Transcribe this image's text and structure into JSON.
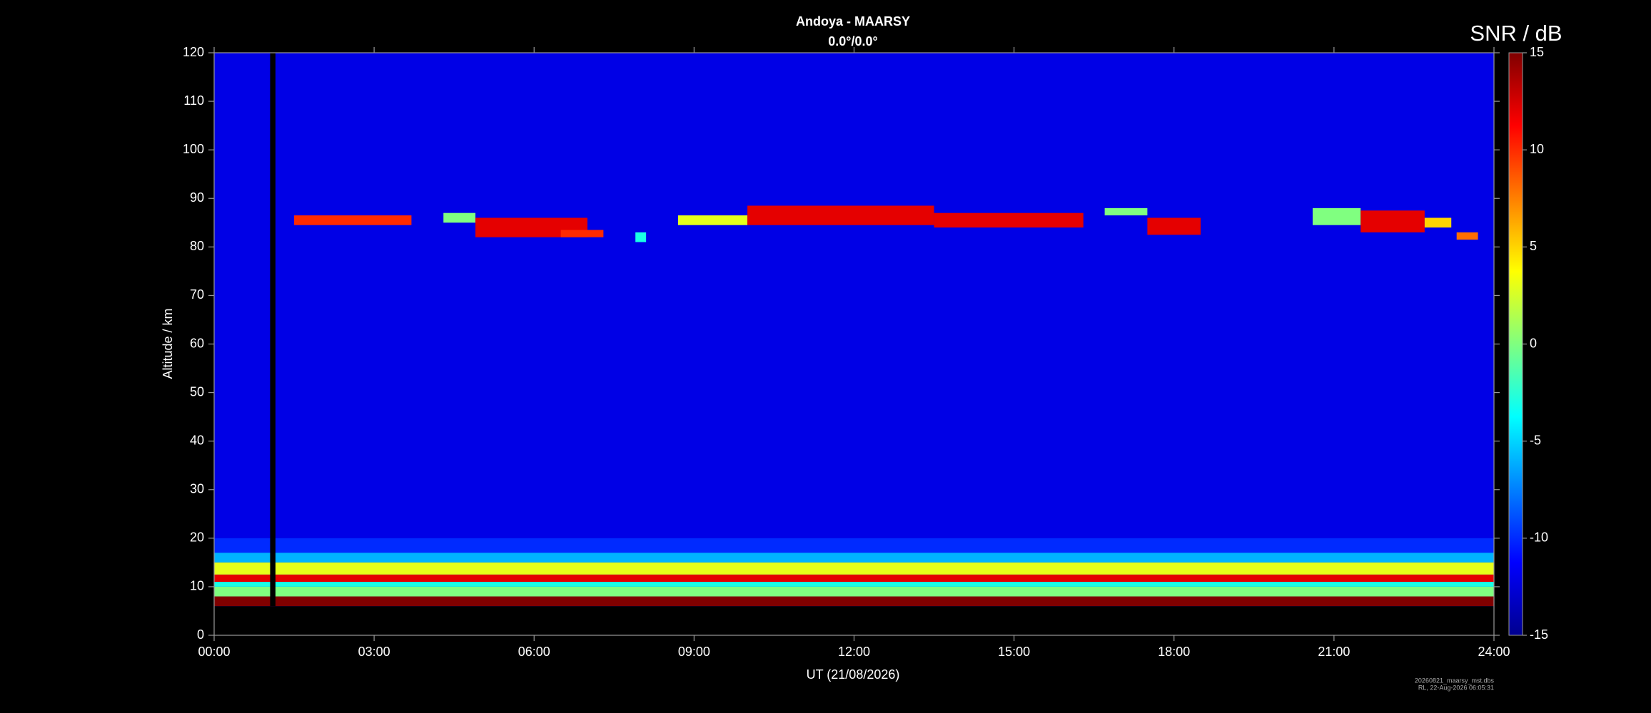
{
  "chart_data": {
    "type": "heatmap",
    "title": "Andoya - MAARSY",
    "subtitle": "0.0°/0.0°",
    "xlabel": "UT (21/08/2026)",
    "ylabel": "Altitude / km",
    "colorbar_label": "SNR / dB",
    "footnotes": [
      "20260821_maarsy_mst.dbs",
      "RL, 22-Aug-2026 06:05:31"
    ],
    "xlim": [
      0,
      24
    ],
    "xticks": [
      {
        "value": 0,
        "label": "00:00"
      },
      {
        "value": 3,
        "label": "03:00"
      },
      {
        "value": 6,
        "label": "06:00"
      },
      {
        "value": 9,
        "label": "09:00"
      },
      {
        "value": 12,
        "label": "12:00"
      },
      {
        "value": 15,
        "label": "15:00"
      },
      {
        "value": 18,
        "label": "18:00"
      },
      {
        "value": 21,
        "label": "21:00"
      },
      {
        "value": 24,
        "label": "24:00"
      }
    ],
    "ylim": [
      0,
      120
    ],
    "yticks": [
      0,
      10,
      20,
      30,
      40,
      50,
      60,
      70,
      80,
      90,
      100,
      110,
      120
    ],
    "clim": [
      -15,
      15
    ],
    "cticks": [
      -15,
      -10,
      -5,
      0,
      5,
      10,
      15
    ],
    "colormap": "jet",
    "cells": [
      {
        "x": [
          0,
          24
        ],
        "y": [
          6,
          120
        ],
        "value": -12
      },
      {
        "x": [
          0,
          24
        ],
        "y": [
          17,
          20
        ],
        "value": -10
      },
      {
        "x": [
          0,
          24
        ],
        "y": [
          15,
          17
        ],
        "value": -6
      },
      {
        "x": [
          0,
          24
        ],
        "y": [
          12.5,
          15
        ],
        "value": 3
      },
      {
        "x": [
          0,
          24
        ],
        "y": [
          11,
          12.5
        ],
        "value": 12
      },
      {
        "x": [
          0,
          24
        ],
        "y": [
          10,
          11
        ],
        "value": -3
      },
      {
        "x": [
          0,
          24
        ],
        "y": [
          8,
          10
        ],
        "value": 0
      },
      {
        "x": [
          0,
          24
        ],
        "y": [
          6,
          8
        ],
        "value": 15
      },
      {
        "x": [
          1.5,
          3.7
        ],
        "y": [
          84.5,
          86.5
        ],
        "value": 10
      },
      {
        "x": [
          4.3,
          4.9
        ],
        "y": [
          85,
          87
        ],
        "value": 0
      },
      {
        "x": [
          4.9,
          7.0
        ],
        "y": [
          82,
          86
        ],
        "value": 12
      },
      {
        "x": [
          6.5,
          7.3
        ],
        "y": [
          82,
          83.5
        ],
        "value": 10
      },
      {
        "x": [
          7.9,
          8.1
        ],
        "y": [
          81,
          83
        ],
        "value": -3
      },
      {
        "x": [
          8.7,
          10.0
        ],
        "y": [
          84.5,
          86.5
        ],
        "value": 3
      },
      {
        "x": [
          10.0,
          13.5
        ],
        "y": [
          84.5,
          88.5
        ],
        "value": 12
      },
      {
        "x": [
          13.5,
          16.3
        ],
        "y": [
          84,
          87
        ],
        "value": 12
      },
      {
        "x": [
          16.7,
          17.5
        ],
        "y": [
          86.5,
          88
        ],
        "value": 0
      },
      {
        "x": [
          17.5,
          18.5
        ],
        "y": [
          82.5,
          86
        ],
        "value": 12
      },
      {
        "x": [
          20.6,
          21.5
        ],
        "y": [
          84.5,
          88
        ],
        "value": 0
      },
      {
        "x": [
          21.5,
          22.7
        ],
        "y": [
          83,
          87.5
        ],
        "value": 12
      },
      {
        "x": [
          22.7,
          23.2
        ],
        "y": [
          84,
          86
        ],
        "value": 5
      },
      {
        "x": [
          23.3,
          23.7
        ],
        "y": [
          81.5,
          83
        ],
        "value": 8
      },
      {
        "x": [
          1.05,
          1.15
        ],
        "y": [
          6,
          120
        ],
        "value": null
      }
    ]
  }
}
